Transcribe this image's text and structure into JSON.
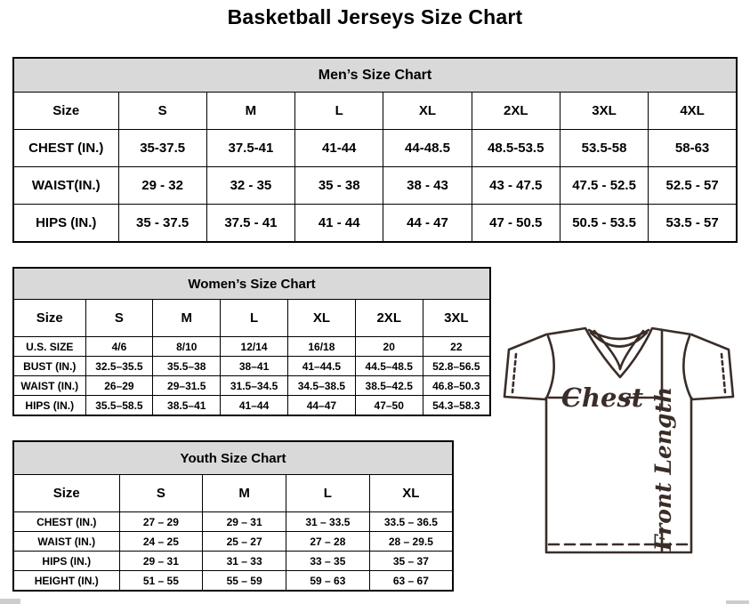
{
  "page": {
    "title": "Basketball Jerseys Size Chart"
  },
  "tables": {
    "men": {
      "header": "Men’s Size Chart",
      "size_label": "Size",
      "columns": [
        "S",
        "M",
        "L",
        "XL",
        "2XL",
        "3XL",
        "4XL"
      ],
      "rows": [
        {
          "label": "CHEST (IN.)",
          "values": [
            "35-37.5",
            "37.5-41",
            "41-44",
            "44-48.5",
            "48.5-53.5",
            "53.5-58",
            "58-63"
          ]
        },
        {
          "label": "WAIST(IN.)",
          "values": [
            "29 - 32",
            "32 - 35",
            "35 - 38",
            "38 - 43",
            "43 - 47.5",
            "47.5 - 52.5",
            "52.5 - 57"
          ]
        },
        {
          "label": "HIPS (IN.)",
          "values": [
            "35 - 37.5",
            "37.5 - 41",
            "41 - 44",
            "44 - 47",
            "47 - 50.5",
            "50.5 - 53.5",
            "53.5 - 57"
          ]
        }
      ]
    },
    "women": {
      "header": "Women’s Size Chart",
      "size_label": "Size",
      "columns": [
        "S",
        "M",
        "L",
        "XL",
        "2XL",
        "3XL"
      ],
      "rows": [
        {
          "label": "U.S. SIZE",
          "values": [
            "4/6",
            "8/10",
            "12/14",
            "16/18",
            "20",
            "22"
          ]
        },
        {
          "label": "BUST (IN.)",
          "values": [
            "32.5–35.5",
            "35.5–38",
            "38–41",
            "41–44.5",
            "44.5–48.5",
            "52.8–56.5"
          ]
        },
        {
          "label": "WAIST (IN.)",
          "values": [
            "26–29",
            "29–31.5",
            "31.5–34.5",
            "34.5–38.5",
            "38.5–42.5",
            "46.8–50.3"
          ]
        },
        {
          "label": "HIPS (IN.)",
          "values": [
            "35.5–58.5",
            "38.5–41",
            "41–44",
            "44–47",
            "47–50",
            "54.3–58.3"
          ]
        }
      ]
    },
    "youth": {
      "header": "Youth Size Chart",
      "size_label": "Size",
      "columns": [
        "S",
        "M",
        "L",
        "XL"
      ],
      "rows": [
        {
          "label": "CHEST (IN.)",
          "values": [
            "27 – 29",
            "29 – 31",
            "31 – 33.5",
            "33.5 – 36.5"
          ]
        },
        {
          "label": "WAIST (IN.)",
          "values": [
            "24 – 25",
            "25 – 27",
            "27 – 28",
            "28 – 29.5"
          ]
        },
        {
          "label": "HIPS (IN.)",
          "values": [
            "29 – 31",
            "31 – 33",
            "33 – 35",
            "35 – 37"
          ]
        },
        {
          "label": "HEIGHT (IN.)",
          "values": [
            "51 – 55",
            "55 – 59",
            "59 – 63",
            "63 – 67"
          ]
        }
      ]
    }
  },
  "diagram": {
    "chest_label": "Chest",
    "front_length_label": "Front Length",
    "line_color": "#3a2d28"
  }
}
